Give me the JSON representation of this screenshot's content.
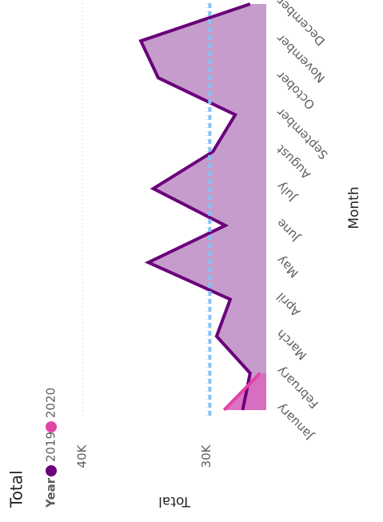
{
  "chart_data": {
    "type": "area",
    "title": "Total",
    "legend_title": "Year",
    "x_label": "Month",
    "y_label": "Total",
    "categories": [
      "January",
      "February",
      "March",
      "April",
      "May",
      "June",
      "July",
      "August",
      "September",
      "October",
      "November",
      "December"
    ],
    "series": [
      {
        "name": "2019",
        "color": "#6b007b",
        "fill": "#c397c9",
        "values": [
          27100,
          26500,
          29200,
          28100,
          34700,
          28500,
          34300,
          29500,
          27700,
          33900,
          35300,
          26500
        ]
      },
      {
        "name": "2020",
        "color": "#e044a7",
        "fill": "#d96bbe",
        "values": [
          28600,
          25700,
          null,
          null,
          null,
          null,
          null,
          null,
          null,
          null,
          null,
          null
        ]
      }
    ],
    "reference_line": 29750,
    "reference_color": "#83c1f5",
    "ylim": [
      25200,
      46000
    ],
    "yticks": [
      {
        "value": 30000,
        "label": "30K"
      },
      {
        "value": 40000,
        "label": "40K"
      }
    ],
    "grid": true,
    "legend": "top-left"
  }
}
